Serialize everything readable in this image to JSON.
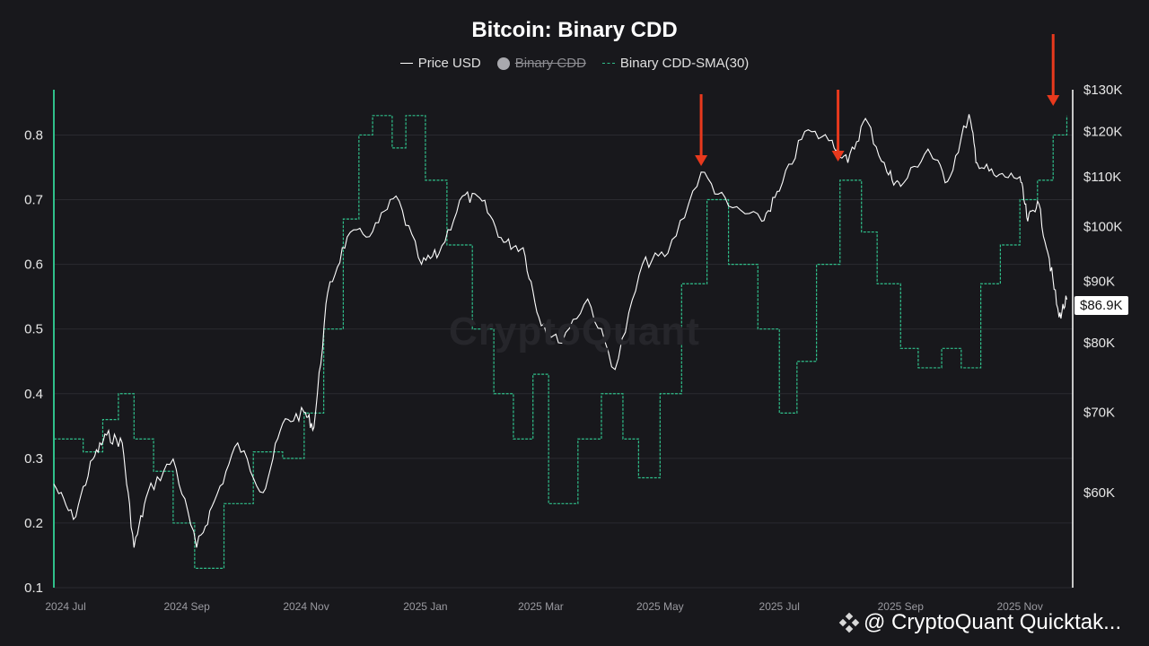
{
  "chart_data": {
    "type": "line",
    "title": "Bitcoin: Binary CDD",
    "legend": [
      {
        "label": "Price USD",
        "style": "solid",
        "color": "#ffffff",
        "hidden": false
      },
      {
        "label": "Binary CDD",
        "style": "dot",
        "color": "#a9a9ae",
        "hidden": true
      },
      {
        "label": "Binary CDD-SMA(30)",
        "style": "dashed",
        "color": "#2fbf8a",
        "hidden": false
      }
    ],
    "x_range": [
      "2024-06-25",
      "2025-11-28"
    ],
    "x_ticks": [
      {
        "label": "2024 Jul",
        "date": "2024-07-01"
      },
      {
        "label": "2024 Sep",
        "date": "2024-09-01"
      },
      {
        "label": "2024 Nov",
        "date": "2024-11-01"
      },
      {
        "label": "2025 Jan",
        "date": "2025-01-01"
      },
      {
        "label": "2025 Mar",
        "date": "2025-03-01"
      },
      {
        "label": "2025 May",
        "date": "2025-05-01"
      },
      {
        "label": "2025 Jul",
        "date": "2025-07-01"
      },
      {
        "label": "2025 Sep",
        "date": "2025-09-01"
      },
      {
        "label": "2025 Nov",
        "date": "2025-11-01"
      }
    ],
    "left_axis": {
      "range": [
        0.1,
        0.87
      ],
      "ticks": [
        {
          "v": 0.1,
          "label": "0.1"
        },
        {
          "v": 0.2,
          "label": "0.2"
        },
        {
          "v": 0.3,
          "label": "0.3"
        },
        {
          "v": 0.4,
          "label": "0.4"
        },
        {
          "v": 0.5,
          "label": "0.5"
        },
        {
          "v": 0.6,
          "label": "0.6"
        },
        {
          "v": 0.7,
          "label": "0.7"
        },
        {
          "v": 0.8,
          "label": "0.8"
        }
      ]
    },
    "right_axis": {
      "scale": "log",
      "range": [
        50000,
        130000
      ],
      "ticks": [
        {
          "v": 60000,
          "label": "$60K"
        },
        {
          "v": 70000,
          "label": "$70K"
        },
        {
          "v": 80000,
          "label": "$80K"
        },
        {
          "v": 90000,
          "label": "$90K"
        },
        {
          "v": 100000,
          "label": "$100K"
        },
        {
          "v": 110000,
          "label": "$110K"
        },
        {
          "v": 120000,
          "label": "$120K"
        },
        {
          "v": 130000,
          "label": "$130K"
        }
      ]
    },
    "price_series": {
      "name": "Price USD",
      "points": [
        [
          "2024-06-25",
          61000
        ],
        [
          "2024-07-05",
          57000
        ],
        [
          "2024-07-15",
          64000
        ],
        [
          "2024-07-22",
          67000
        ],
        [
          "2024-07-30",
          66000
        ],
        [
          "2024-08-05",
          54000
        ],
        [
          "2024-08-12",
          60000
        ],
        [
          "2024-08-25",
          64000
        ],
        [
          "2024-09-06",
          54000
        ],
        [
          "2024-09-15",
          59000
        ],
        [
          "2024-09-27",
          66000
        ],
        [
          "2024-10-10",
          60000
        ],
        [
          "2024-10-20",
          68500
        ],
        [
          "2024-10-31",
          70000
        ],
        [
          "2024-11-05",
          68000
        ],
        [
          "2024-11-12",
          88000
        ],
        [
          "2024-11-22",
          98000
        ],
        [
          "2024-12-05",
          99000
        ],
        [
          "2024-12-17",
          106000
        ],
        [
          "2024-12-30",
          93000
        ],
        [
          "2025-01-08",
          95000
        ],
        [
          "2025-01-20",
          106000
        ],
        [
          "2025-01-30",
          105000
        ],
        [
          "2025-02-10",
          97000
        ],
        [
          "2025-02-20",
          96000
        ],
        [
          "2025-02-28",
          84000
        ],
        [
          "2025-03-10",
          80000
        ],
        [
          "2025-03-25",
          87000
        ],
        [
          "2025-04-08",
          76000
        ],
        [
          "2025-04-22",
          93000
        ],
        [
          "2025-05-05",
          95000
        ],
        [
          "2025-05-22",
          111000
        ],
        [
          "2025-06-05",
          104000
        ],
        [
          "2025-06-22",
          101000
        ],
        [
          "2025-07-01",
          107000
        ],
        [
          "2025-07-14",
          120000
        ],
        [
          "2025-07-28",
          118000
        ],
        [
          "2025-08-05",
          113000
        ],
        [
          "2025-08-14",
          123000
        ],
        [
          "2025-08-25",
          111000
        ],
        [
          "2025-09-01",
          108000
        ],
        [
          "2025-09-15",
          116000
        ],
        [
          "2025-09-25",
          109000
        ],
        [
          "2025-10-06",
          124000
        ],
        [
          "2025-10-10",
          113000
        ],
        [
          "2025-10-20",
          110000
        ],
        [
          "2025-11-01",
          110000
        ],
        [
          "2025-11-05",
          101000
        ],
        [
          "2025-11-10",
          105000
        ],
        [
          "2025-11-16",
          94000
        ],
        [
          "2025-11-21",
          84000
        ],
        [
          "2025-11-25",
          86900
        ]
      ]
    },
    "cdd_sma_series": {
      "name": "Binary CDD-SMA(30)",
      "points": [
        [
          "2024-06-25",
          0.33
        ],
        [
          "2024-07-10",
          0.31
        ],
        [
          "2024-07-20",
          0.36
        ],
        [
          "2024-07-28",
          0.4
        ],
        [
          "2024-08-05",
          0.33
        ],
        [
          "2024-08-15",
          0.28
        ],
        [
          "2024-08-25",
          0.2
        ],
        [
          "2024-09-05",
          0.13
        ],
        [
          "2024-09-20",
          0.23
        ],
        [
          "2024-10-05",
          0.31
        ],
        [
          "2024-10-20",
          0.3
        ],
        [
          "2024-10-31",
          0.37
        ],
        [
          "2024-11-10",
          0.5
        ],
        [
          "2024-11-20",
          0.67
        ],
        [
          "2024-11-28",
          0.8
        ],
        [
          "2024-12-05",
          0.83
        ],
        [
          "2024-12-15",
          0.78
        ],
        [
          "2024-12-22",
          0.83
        ],
        [
          "2025-01-01",
          0.73
        ],
        [
          "2025-01-12",
          0.63
        ],
        [
          "2025-01-25",
          0.5
        ],
        [
          "2025-02-05",
          0.4
        ],
        [
          "2025-02-15",
          0.33
        ],
        [
          "2025-02-25",
          0.43
        ],
        [
          "2025-03-05",
          0.23
        ],
        [
          "2025-03-20",
          0.33
        ],
        [
          "2025-04-01",
          0.4
        ],
        [
          "2025-04-12",
          0.33
        ],
        [
          "2025-04-20",
          0.27
        ],
        [
          "2025-05-01",
          0.4
        ],
        [
          "2025-05-12",
          0.57
        ],
        [
          "2025-05-25",
          0.7
        ],
        [
          "2025-06-05",
          0.6
        ],
        [
          "2025-06-20",
          0.5
        ],
        [
          "2025-07-01",
          0.37
        ],
        [
          "2025-07-10",
          0.45
        ],
        [
          "2025-07-20",
          0.6
        ],
        [
          "2025-08-01",
          0.73
        ],
        [
          "2025-08-12",
          0.65
        ],
        [
          "2025-08-20",
          0.57
        ],
        [
          "2025-09-01",
          0.47
        ],
        [
          "2025-09-10",
          0.44
        ],
        [
          "2025-09-22",
          0.47
        ],
        [
          "2025-10-02",
          0.44
        ],
        [
          "2025-10-12",
          0.57
        ],
        [
          "2025-10-22",
          0.63
        ],
        [
          "2025-11-01",
          0.7
        ],
        [
          "2025-11-10",
          0.73
        ],
        [
          "2025-11-18",
          0.8
        ],
        [
          "2025-11-25",
          0.83
        ]
      ]
    },
    "annotations": {
      "arrows_at": [
        "2025-05-22",
        "2025-07-31",
        "2025-11-18"
      ],
      "current_price_label": "$86.9K"
    }
  },
  "colors": {
    "background": "#18181c",
    "price": "#ffffff",
    "sma": "#2fbf8a",
    "left_axis": "#2fbf8a",
    "arrow": "#e8391d",
    "grid": "#2a2a30"
  },
  "watermark": "CryptoQuant",
  "footer_text": "@ CryptoQuant Quicktak..."
}
